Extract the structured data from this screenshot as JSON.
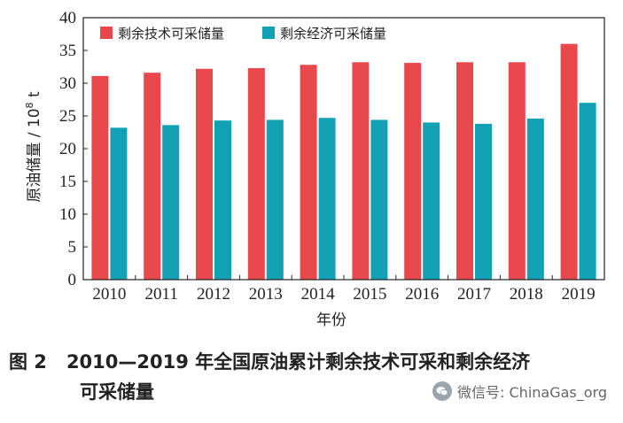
{
  "chart_data": {
    "type": "bar",
    "categories": [
      "2010",
      "2011",
      "2012",
      "2013",
      "2014",
      "2015",
      "2016",
      "2017",
      "2018",
      "2019"
    ],
    "series": [
      {
        "name": "剩余技术可采储量",
        "color": "#e8474c",
        "values": [
          31.1,
          31.6,
          32.2,
          32.3,
          32.8,
          33.2,
          33.1,
          33.2,
          33.2,
          36.0
        ]
      },
      {
        "name": "剩余经济可采储量",
        "color": "#12a0b4",
        "values": [
          23.2,
          23.6,
          24.3,
          24.4,
          24.7,
          24.4,
          24.0,
          23.8,
          24.6,
          27.0
        ]
      }
    ],
    "xlabel": "年份",
    "ylabel": "原油储量 / 10",
    "ylabel_sup": "8",
    "ylabel_unit": " t",
    "ylim": [
      0,
      40
    ],
    "yticks": [
      "0",
      "5",
      "10",
      "15",
      "20",
      "25",
      "30",
      "35",
      "40"
    ]
  },
  "caption": {
    "figure_no": "图 2",
    "line1": "2010—2019 年全国原油累计剩余技术可采和剩余经济",
    "line2": "可采储量"
  },
  "watermark": {
    "text": "微信号: ChinaGas_org"
  }
}
